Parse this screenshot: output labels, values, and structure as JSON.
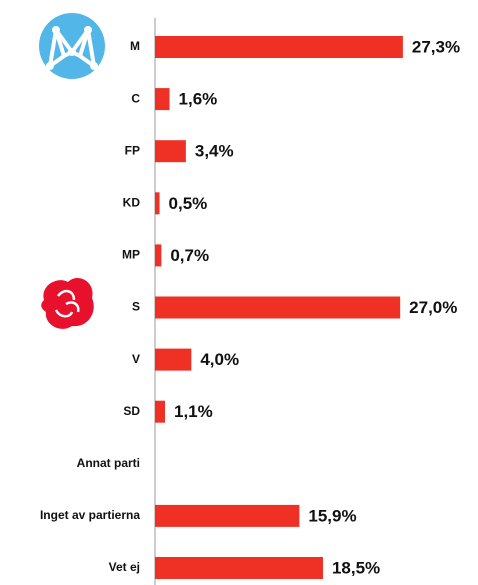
{
  "chart_data": {
    "type": "barh",
    "categories": [
      "M",
      "C",
      "FP",
      "KD",
      "MP",
      "S",
      "V",
      "SD",
      "Annat parti",
      "Inget av partierna",
      "Vet ej"
    ],
    "values": [
      27.3,
      1.6,
      3.4,
      0.5,
      0.7,
      27.0,
      4.0,
      1.1,
      null,
      15.9,
      18.5
    ],
    "value_labels": [
      "27,3%",
      "1,6%",
      "3,4%",
      "0,5%",
      "0,7%",
      "27,0%",
      "4,0%",
      "1,1%",
      null,
      "15,9%",
      "18,5%"
    ],
    "color": "#ee3124"
  }
}
